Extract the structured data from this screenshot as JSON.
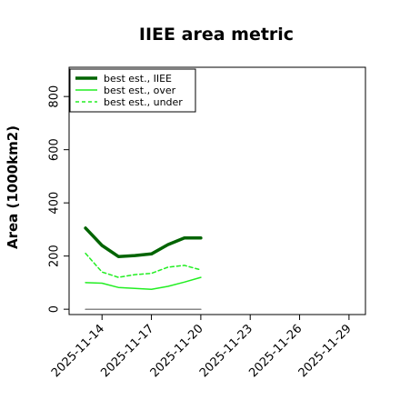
{
  "chart_data": {
    "type": "line",
    "title": "IIEE area metric",
    "xlabel": "",
    "ylabel": "Area (1000km2)",
    "x_ticks": [
      "2025-11-14",
      "2025-11-17",
      "2025-11-20",
      "2025-11-23",
      "2025-11-26",
      "2025-11-29"
    ],
    "x_range": [
      "2025-11-12",
      "2025-11-30"
    ],
    "y_ticks": [
      0,
      200,
      400,
      600,
      800
    ],
    "ylim": [
      -20,
      910
    ],
    "grid": false,
    "legend_position": "top-left",
    "series": [
      {
        "name": "best est., IIEE",
        "color": "#006400",
        "style": "solid",
        "width": "thick",
        "x": [
          "2025-11-13",
          "2025-11-14",
          "2025-11-15",
          "2025-11-16",
          "2025-11-17",
          "2025-11-18",
          "2025-11-19",
          "2025-11-20"
        ],
        "y": [
          305,
          240,
          198,
          202,
          208,
          243,
          268,
          268
        ]
      },
      {
        "name": "best est., over",
        "color": "#22ee22",
        "style": "solid",
        "width": "thin",
        "x": [
          "2025-11-13",
          "2025-11-14",
          "2025-11-15",
          "2025-11-16",
          "2025-11-17",
          "2025-11-18",
          "2025-11-19",
          "2025-11-20"
        ],
        "y": [
          100,
          98,
          82,
          78,
          75,
          86,
          102,
          120
        ]
      },
      {
        "name": "best est., under",
        "color": "#22ee22",
        "style": "dashed",
        "width": "thin",
        "x": [
          "2025-11-13",
          "2025-11-14",
          "2025-11-15",
          "2025-11-16",
          "2025-11-17",
          "2025-11-18",
          "2025-11-19",
          "2025-11-20"
        ],
        "y": [
          210,
          140,
          120,
          130,
          135,
          158,
          165,
          148
        ]
      },
      {
        "name": "",
        "color": "#888888",
        "style": "solid",
        "width": "thin",
        "x": [
          "2025-11-13",
          "2025-11-20"
        ],
        "y": [
          0,
          0
        ]
      }
    ]
  }
}
